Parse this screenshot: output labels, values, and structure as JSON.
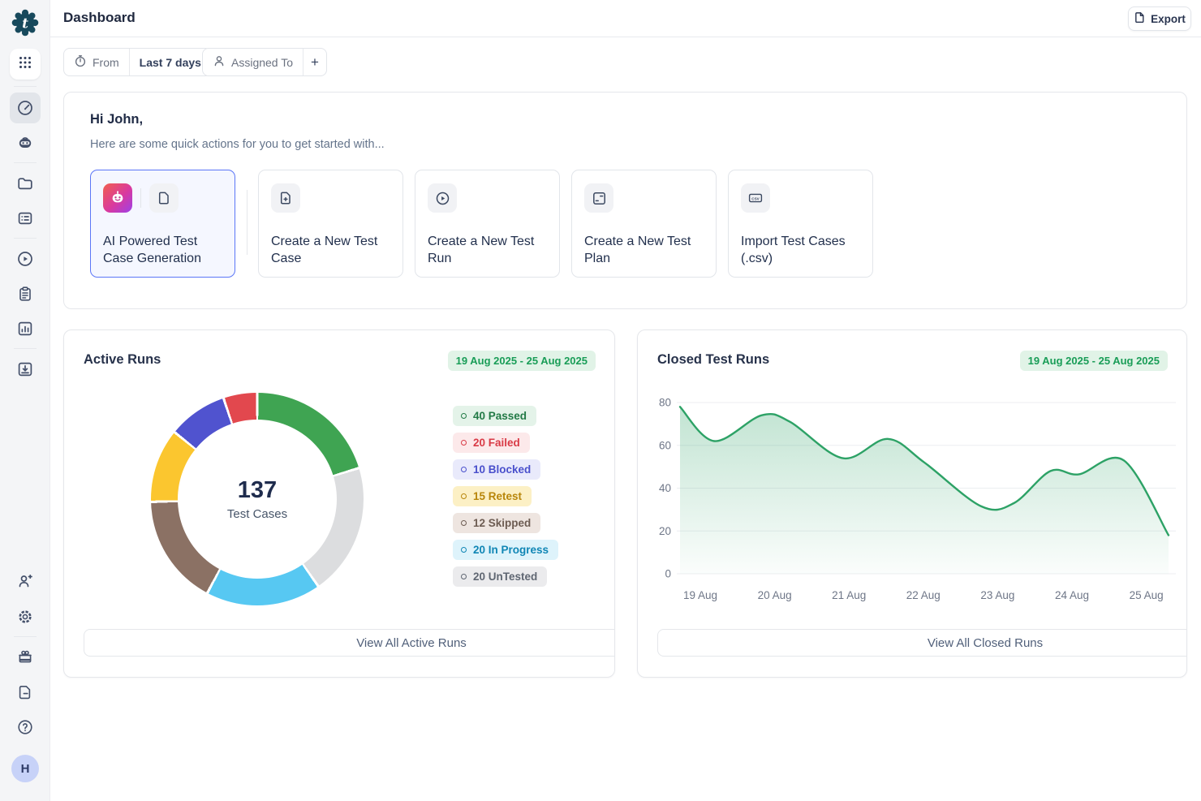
{
  "app": {
    "logo_letter": "t"
  },
  "sidebar": {
    "avatar_label": "H",
    "top_icons": [
      "grid-dots",
      "gauge",
      "robot",
      "folder",
      "list-box",
      "play-circle",
      "clipboard",
      "bar-chart",
      "import-tray"
    ],
    "bottom_icons": [
      "user-plus",
      "gear",
      "gift",
      "file-text",
      "help-circle"
    ]
  },
  "header": {
    "title": "Dashboard",
    "export_label": "Export"
  },
  "filters": {
    "from_label": "From",
    "range_value": "Last 7 days",
    "assigned_label": "Assigned To",
    "add_label": "+"
  },
  "greeting": {
    "title": "Hi John,",
    "subtitle": "Here are some quick actions for you to get started with...",
    "actions": [
      {
        "label": "AI Powered Test Case Generation",
        "icon": "ai-robot-gradient",
        "highlighted": true
      },
      {
        "label": "Create a New Test Case",
        "icon": "file-plus"
      },
      {
        "label": "Create a New Test Run",
        "icon": "play-circle"
      },
      {
        "label": "Create a New Test Plan",
        "icon": "test-plan"
      },
      {
        "label": "Import Test Cases (.csv)",
        "icon": "csv-badge"
      }
    ]
  },
  "active_runs": {
    "title": "Active Runs",
    "date_range": "19 Aug 2025 - 25 Aug 2025",
    "view_all_label": "View All Active Runs"
  },
  "closed_runs": {
    "title": "Closed Test Runs",
    "date_range": "19 Aug 2025 - 25 Aug 2025",
    "view_all_label": "View All Closed Runs"
  },
  "chart_data": [
    {
      "type": "pie",
      "title": "Active Runs",
      "date_range": "19 Aug 2025 - 25 Aug 2025",
      "total": 137,
      "center_label": "Test Cases",
      "legend_position": "right",
      "segments": [
        {
          "label": "Passed",
          "value": 40,
          "color": "#3fa452",
          "text_color": "#227a46",
          "badge_bg": "#e4f3e9",
          "display_start": 0,
          "display_end": 73
        },
        {
          "label": "Failed",
          "value": 20,
          "color": "#e2484e",
          "text_color": "#d93b47",
          "badge_bg": "#fce9ea",
          "display_start": 341.5,
          "display_end": 360
        },
        {
          "label": "Blocked",
          "value": 10,
          "color": "#5053cf",
          "text_color": "#4a50cc",
          "badge_bg": "#e9eafb",
          "display_start": 309,
          "display_end": 341.5
        },
        {
          "label": "Retest",
          "value": 15,
          "color": "#fbc62f",
          "text_color": "#b8860b",
          "badge_bg": "#fcf0c5",
          "display_start": 268.5,
          "display_end": 309
        },
        {
          "label": "Skipped",
          "value": 12,
          "color": "#8b7164",
          "text_color": "#6d5c52",
          "badge_bg": "#eee5e0",
          "display_start": 208,
          "display_end": 268.5
        },
        {
          "label": "In Progress",
          "value": 20,
          "color": "#57c8f2",
          "text_color": "#1086b5",
          "badge_bg": "#def3fb",
          "display_start": 145,
          "display_end": 208
        },
        {
          "label": "UnTested",
          "value": 20,
          "color": "#dcdddf",
          "text_color": "#5f6672",
          "badge_bg": "#ebebed",
          "display_start": 73,
          "display_end": 145
        }
      ]
    },
    {
      "type": "area",
      "title": "Closed Test Runs",
      "date_range": "19 Aug 2025 - 25 Aug 2025",
      "x_ticks": [
        "19 Aug",
        "20 Aug",
        "21 Aug",
        "22 Aug",
        "23 Aug",
        "24 Aug",
        "25 Aug"
      ],
      "y_ticks": [
        0,
        20,
        40,
        60,
        80
      ],
      "ylim": [
        0,
        80
      ],
      "grid": true,
      "line_color": "#2da266",
      "points": [
        {
          "x": 0,
          "y": 78
        },
        {
          "x": 0.42,
          "y": 62
        },
        {
          "x": 1,
          "y": 74
        },
        {
          "x": 1.35,
          "y": 71
        },
        {
          "x": 2,
          "y": 54
        },
        {
          "x": 2.55,
          "y": 63
        },
        {
          "x": 3,
          "y": 52
        },
        {
          "x": 3.7,
          "y": 31.5
        },
        {
          "x": 4.1,
          "y": 33
        },
        {
          "x": 4.55,
          "y": 48
        },
        {
          "x": 4.9,
          "y": 46.5
        },
        {
          "x": 5.45,
          "y": 53
        },
        {
          "x": 6,
          "y": 18
        }
      ]
    }
  ]
}
